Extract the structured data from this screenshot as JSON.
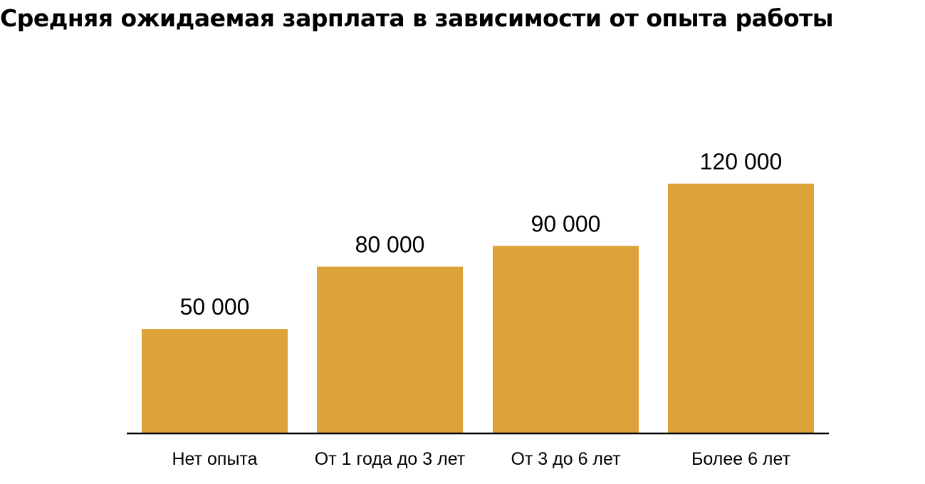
{
  "chart_data": {
    "type": "bar",
    "title": "Средняя ожидаемая зарплата в зависимости от опыта работы",
    "categories": [
      "Нет опыта",
      "От 1 года до 3 лет",
      "От 3 до 6 лет",
      "Более 6 лет"
    ],
    "values": [
      50000,
      80000,
      90000,
      120000
    ],
    "value_labels": [
      "50 000",
      "80 000",
      "90 000",
      "120 000"
    ],
    "xlabel": "",
    "ylabel": "",
    "ylim": [
      0,
      120000
    ],
    "grid": false,
    "legend": "none",
    "bar_color": "#DBA339",
    "axis_color": "#000000"
  }
}
